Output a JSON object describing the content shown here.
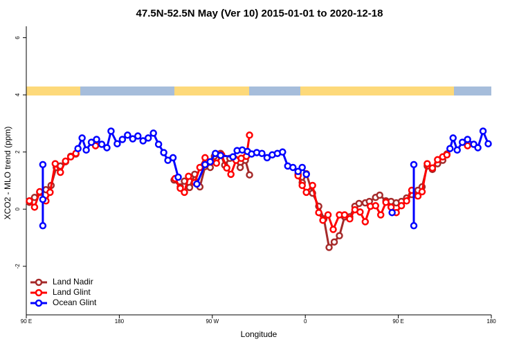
{
  "chart_data": {
    "type": "line",
    "title": "47.5N-52.5N May (Ver 10)   2015-01-01 to 2020-12-18",
    "x_label": "Longitude",
    "y_label": "XCO2 - MLO trend (ppm)",
    "xlim": [
      90,
      540
    ],
    "ylim": [
      -3.7,
      6.4
    ],
    "xticks": [
      {
        "value": 90,
        "label": "90 E"
      },
      180,
      {
        "value": 270,
        "label": "90 W"
      },
      {
        "value": 360,
        "label": "0"
      },
      {
        "value": 450,
        "label": "90 E"
      },
      180
    ],
    "yticks": [
      -2,
      0,
      2,
      4,
      6
    ],
    "legend": "bottom-left",
    "series": [
      {
        "name": "Land Nadir",
        "color": "#a52a2a",
        "x": [
          93,
          98,
          103,
          109,
          114,
          119,
          123,
          128,
          133,
          138,
          185,
          233,
          239,
          243,
          248,
          253,
          258,
          263,
          268,
          272,
          278,
          282,
          287,
          292,
          297,
          302,
          306,
          319,
          353,
          357,
          361,
          367,
          373,
          378,
          383,
          388,
          393,
          398,
          403,
          408,
          412,
          418,
          422,
          428,
          432,
          438,
          443,
          448,
          453,
          458,
          463,
          469,
          473,
          478,
          483,
          488,
          493,
          497
        ],
        "values": [
          0.24,
          0.41,
          0.59,
          0.68,
          0.83,
          1.46,
          1.51,
          1.66,
          1.85,
          1.93,
          null,
          1.02,
          0.78,
          0.98,
          0.76,
          1.22,
          0.78,
          1.49,
          1.46,
          1.85,
          1.95,
          1.54,
          1.78,
          1.76,
          1.46,
          1.71,
          1.2,
          null,
          1.22,
          0.93,
          1.24,
          0.56,
          0.1,
          -0.34,
          -1.34,
          -1.15,
          -0.93,
          -0.27,
          -0.27,
          0.1,
          0.2,
          0.22,
          0.27,
          0.41,
          0.49,
          0.29,
          0.27,
          0.22,
          0.27,
          0.39,
          0.51,
          0.66,
          0.78,
          1.51,
          1.39,
          1.59,
          1.71,
          1.93
        ]
      },
      {
        "name": "Land Glint",
        "color": "#ff0000",
        "x": [
          93,
          98,
          103,
          109,
          113,
          118,
          123,
          128,
          133,
          138,
          148,
          157,
          195,
          234,
          239,
          243,
          247,
          253,
          258,
          263,
          269,
          274,
          279,
          284,
          288,
          293,
          298,
          303,
          306,
          319,
          353,
          357,
          361,
          367,
          373,
          377,
          382,
          387,
          393,
          398,
          403,
          408,
          413,
          418,
          423,
          428,
          433,
          438,
          443,
          448,
          453,
          458,
          463,
          469,
          473,
          478,
          483,
          488,
          493,
          497,
          507,
          517
        ],
        "values": [
          0.29,
          0.07,
          0.61,
          0.29,
          0.59,
          1.59,
          1.29,
          1.68,
          1.83,
          1.95,
          null,
          2.22,
          null,
          1.07,
          0.73,
          0.59,
          1.15,
          0.93,
          1.46,
          1.8,
          1.66,
          1.61,
          1.9,
          1.44,
          1.22,
          1.71,
          1.78,
          1.85,
          2.59,
          null,
          1.17,
          0.83,
          0.59,
          0.83,
          -0.12,
          -0.39,
          -0.2,
          -0.71,
          -0.2,
          -0.2,
          -0.34,
          -0.02,
          -0.1,
          -0.44,
          0.1,
          0.12,
          -0.2,
          0.24,
          0.07,
          -0.12,
          0.12,
          0.29,
          0.66,
          0.46,
          0.61,
          1.59,
          1.44,
          1.73,
          1.83,
          1.9,
          null,
          2.22
        ]
      },
      {
        "name": "Ocean Glint",
        "color": "#0000ff",
        "x": [
          106,
          106,
          106,
          125,
          140,
          144,
          148,
          153,
          158,
          163,
          168,
          172,
          178,
          183,
          188,
          193,
          198,
          203,
          208,
          213,
          218,
          223,
          227,
          232,
          237,
          245,
          255,
          263,
          268,
          273,
          278,
          290,
          294,
          299,
          304,
          308,
          313,
          318,
          323,
          328,
          333,
          338,
          343,
          348,
          353,
          357,
          361,
          400,
          444,
          455,
          465,
          465,
          490,
          500,
          503,
          507,
          512,
          517,
          523,
          527,
          532,
          537
        ],
        "values": [
          0.34,
          1.56,
          -0.58,
          null,
          2.12,
          2.49,
          2.07,
          2.34,
          2.44,
          2.27,
          2.15,
          2.73,
          2.29,
          2.44,
          2.59,
          2.46,
          2.56,
          2.39,
          2.49,
          2.66,
          2.27,
          1.98,
          1.71,
          1.8,
          1.12,
          null,
          0.88,
          1.56,
          1.66,
          1.95,
          1.88,
          1.83,
          2.05,
          2.07,
          2.02,
          1.93,
          1.98,
          1.95,
          1.8,
          1.9,
          1.95,
          2.0,
          1.51,
          1.46,
          1.32,
          1.46,
          1.22,
          null,
          -0.12,
          null,
          1.56,
          -0.58,
          null,
          2.12,
          2.49,
          2.07,
          2.34,
          2.44,
          2.27,
          2.15,
          2.73,
          2.29
        ]
      }
    ]
  }
}
